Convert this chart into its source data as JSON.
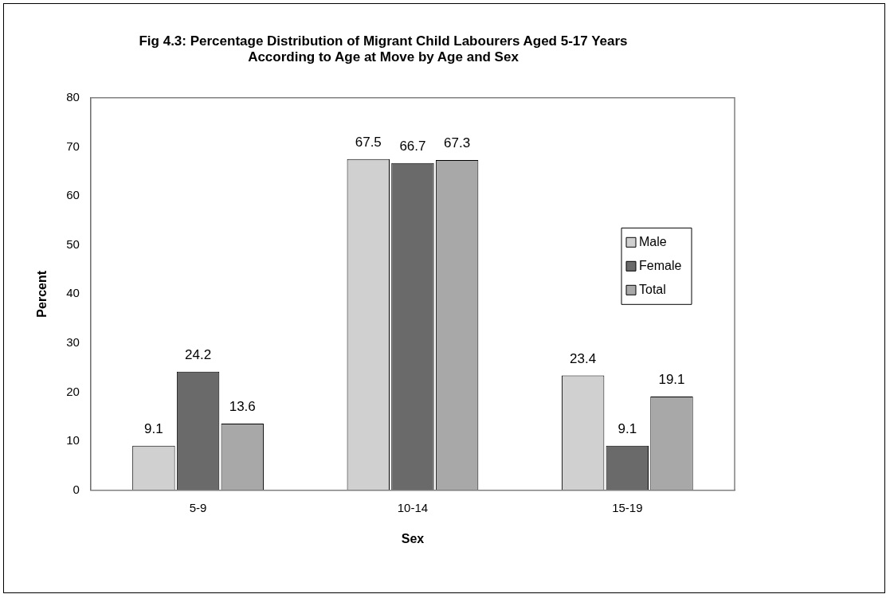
{
  "chart_data": {
    "type": "bar",
    "title": "Fig 4.3: Percentage Distribution of Migrant Child Labourers Aged 5-17 Years\nAccording to Age at Move by Age and Sex",
    "xlabel": "Sex",
    "ylabel": "Percent",
    "categories": [
      "5-9",
      "10-14",
      "15-19"
    ],
    "series": [
      {
        "name": "Male",
        "color": "#d0d0d0",
        "values": [
          9.1,
          67.5,
          23.4
        ]
      },
      {
        "name": "Female",
        "color": "#6a6a6a",
        "values": [
          24.2,
          66.7,
          9.1
        ]
      },
      {
        "name": "Total",
        "color": "#a8a8a8",
        "values": [
          13.6,
          67.3,
          19.1
        ]
      }
    ],
    "ylim": [
      0,
      80
    ],
    "yticks": [
      0,
      10,
      20,
      30,
      40,
      50,
      60,
      70,
      80
    ],
    "grid": false,
    "legend": "right",
    "data_labels": true
  }
}
